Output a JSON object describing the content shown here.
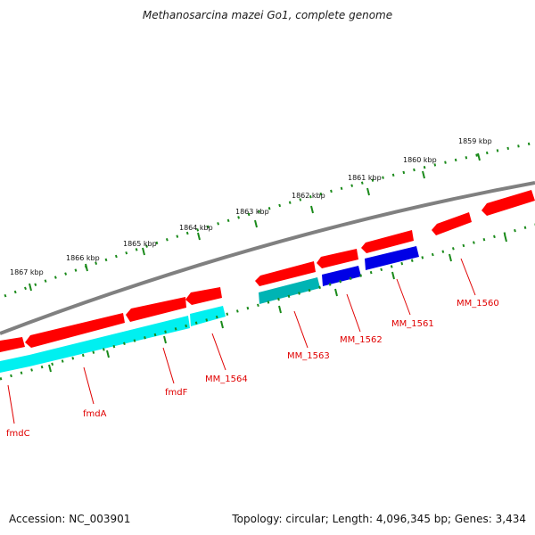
{
  "title": "Methanosarcina mazei Go1, complete genome",
  "footer": {
    "accession": "Accession: NC_003901",
    "summary": "Topology: circular; Length: 4,096,345 bp; Genes: 3,434"
  },
  "scale_labels": [
    "1859 kbp",
    "1860 kbp",
    "1861 kbp",
    "1862 kbp",
    "1863 kbp",
    "1864 kbp",
    "1865 kbp",
    "1866 kbp",
    "1867 kbp"
  ],
  "gene_labels": [
    "fmdC",
    "fmdA",
    "fmdF",
    "MM_1564",
    "MM_1563",
    "MM_1562",
    "MM_1561",
    "MM_1560"
  ],
  "colors": {
    "gene": "#ff0000",
    "cds_cyan": "#00f0f0",
    "cds_teal": "#00b4b4",
    "cds_blue": "#0000e6",
    "backbone": "#808080",
    "ticks": "#1a8a1a",
    "label": "#e00000"
  }
}
